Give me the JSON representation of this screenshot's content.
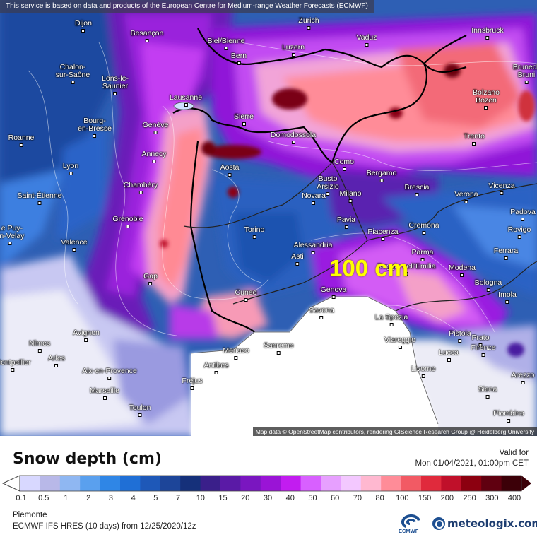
{
  "disclaimer": "This service is based on data and products of the European Centre for Medium-range Weather Forecasts (ECMWF)",
  "attribution": "Map data © OpenStreetMap contributors, rendering GIScience Research Group @ Heidelberg University",
  "highlight_label": "100 cm",
  "title": "Snow depth (cm)",
  "valid_label": "Valid for",
  "valid_time": "Mon 01/04/2021, 01:00pm CET",
  "region": "Piemonte",
  "model_run": "ECMWF IFS HRES (10 days) from 12/25/2020/12z",
  "ecmwf_logo_text": "ECMWF",
  "brand": "meteologix.com",
  "legend": {
    "ticks": [
      "0.1",
      "0.5",
      "1",
      "2",
      "3",
      "4",
      "5",
      "7",
      "10",
      "15",
      "20",
      "30",
      "40",
      "50",
      "60",
      "70",
      "80",
      "100",
      "150",
      "200",
      "250",
      "300",
      "400"
    ],
    "colors": [
      "#d8d8ff",
      "#b8b8e8",
      "#8fb7f2",
      "#5aa0ee",
      "#2f86e6",
      "#1f6fd6",
      "#1e58b8",
      "#1d4599",
      "#15307a",
      "#3a1f8a",
      "#5a1aa6",
      "#7a16c0",
      "#9a14d6",
      "#c21cf0",
      "#d860ff",
      "#e7a0ff",
      "#f3c8ff",
      "#ffb8d0",
      "#ff8c98",
      "#f25a64",
      "#e02a3c",
      "#c0102a",
      "#8c0010",
      "#600010",
      "#3c0008"
    ]
  },
  "cities": [
    {
      "name": "Dijon"
    },
    {
      "name": "Besançon"
    },
    {
      "name": "Zürich"
    },
    {
      "name": "Vaduz"
    },
    {
      "name": "Innsbruck"
    },
    {
      "name": "Biel/Bienne"
    },
    {
      "name": "Bern"
    },
    {
      "name": "Luzern"
    },
    {
      "name": "Chalon-\nsur-Saône"
    },
    {
      "name": "Lons-le-\nSaunier"
    },
    {
      "name": "Lausanne"
    },
    {
      "name": "Sierre"
    },
    {
      "name": "Domodossola"
    },
    {
      "name": "Bolzano\nBozen"
    },
    {
      "name": "Bruneck\nBruni"
    },
    {
      "name": "Bourg-\nen-Bresse"
    },
    {
      "name": "Genève"
    },
    {
      "name": "Trento"
    },
    {
      "name": "Roanne"
    },
    {
      "name": "Annecy"
    },
    {
      "name": "Aosta"
    },
    {
      "name": "Como"
    },
    {
      "name": "Lyon"
    },
    {
      "name": "Busto\nArsizio"
    },
    {
      "name": "Bergamo"
    },
    {
      "name": "Chambéry"
    },
    {
      "name": "Saint-Étienne"
    },
    {
      "name": "Novara"
    },
    {
      "name": "Milano"
    },
    {
      "name": "Brescia"
    },
    {
      "name": "Verona"
    },
    {
      "name": "Vicenza"
    },
    {
      "name": "Padova"
    },
    {
      "name": "Grenoble"
    },
    {
      "name": "Le Puy-\nen-Velay"
    },
    {
      "name": "Pavia"
    },
    {
      "name": "Torino"
    },
    {
      "name": "Piacenza"
    },
    {
      "name": "Cremona"
    },
    {
      "name": "Rovigo"
    },
    {
      "name": "Valence"
    },
    {
      "name": "Alessandria"
    },
    {
      "name": "Parma"
    },
    {
      "name": "Ferrara"
    },
    {
      "name": "Asti"
    },
    {
      "name": "Reggio nell'Emilia"
    },
    {
      "name": "Modena"
    },
    {
      "name": "Gap"
    },
    {
      "name": "Bologna"
    },
    {
      "name": "Cuneo"
    },
    {
      "name": "Genova"
    },
    {
      "name": "Imola"
    },
    {
      "name": "Savona"
    },
    {
      "name": "La Spezia"
    },
    {
      "name": "Avignon"
    },
    {
      "name": "Pistoia"
    },
    {
      "name": "Nîmes"
    },
    {
      "name": "Viareggio"
    },
    {
      "name": "Prato"
    },
    {
      "name": "Monaco"
    },
    {
      "name": "Sanremo"
    },
    {
      "name": "Arles"
    },
    {
      "name": "Lucca"
    },
    {
      "name": "Firenze"
    },
    {
      "name": "Montpellier"
    },
    {
      "name": "Antibes"
    },
    {
      "name": "Aix-en-Provence"
    },
    {
      "name": "Livorno"
    },
    {
      "name": "Fréjus"
    },
    {
      "name": "Arezzo"
    },
    {
      "name": "Marseille"
    },
    {
      "name": "Siena"
    },
    {
      "name": "Toulon"
    },
    {
      "name": "Piombino"
    }
  ]
}
